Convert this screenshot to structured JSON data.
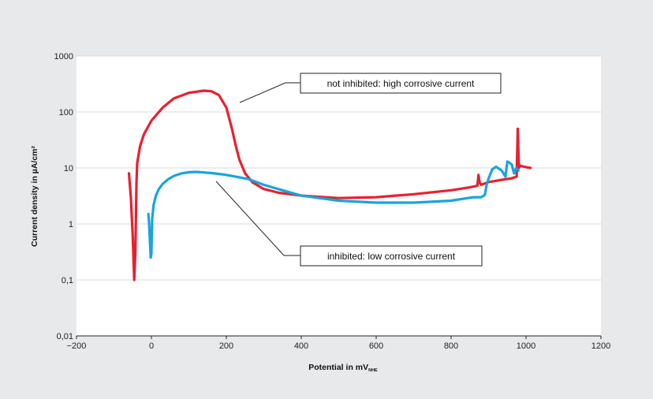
{
  "chart_data": {
    "type": "line",
    "xlabel": "Potential in mV",
    "xlabel_subscript": "NHE",
    "ylabel": "Current density in µA/cm²",
    "xlim": [
      -200,
      1200
    ],
    "ylim": [
      0.01,
      1000
    ],
    "y_scale": "log",
    "grid": "horizontal",
    "x_ticks": [
      -200,
      0,
      200,
      400,
      600,
      800,
      1000,
      1200
    ],
    "x_tick_labels": [
      "−200",
      "0",
      "200",
      "400",
      "600",
      "800",
      "1000",
      "1200"
    ],
    "y_ticks": [
      0.01,
      0.1,
      1,
      10,
      100,
      1000
    ],
    "y_tick_labels": [
      "0,01",
      "0,1",
      "1",
      "10",
      "100",
      "1000"
    ],
    "annotations": [
      {
        "text": "not inhibited: high corrosive current",
        "series": 0,
        "anchor": [
          235,
          250
        ]
      },
      {
        "text": "inhibited: low corrosive current",
        "series": 1,
        "anchor": [
          190,
          8
        ]
      }
    ],
    "series": [
      {
        "color": "#e8202f",
        "x": [
          -60,
          -55,
          -50,
          -46,
          -43,
          -40,
          -38,
          -34,
          -30,
          -20,
          0,
          30,
          60,
          100,
          140,
          160,
          180,
          200,
          215,
          225,
          235,
          250,
          270,
          300,
          340,
          400,
          500,
          600,
          700,
          800,
          850,
          870,
          873,
          876,
          880,
          900,
          920,
          940,
          960,
          975,
          978,
          981,
          985,
          995,
          1005,
          1012
        ],
        "y": [
          8,
          3,
          0.6,
          0.1,
          0.3,
          5,
          12,
          18,
          25,
          40,
          70,
          120,
          175,
          220,
          240,
          235,
          200,
          120,
          50,
          25,
          14,
          8,
          5.5,
          4.2,
          3.6,
          3.2,
          2.9,
          3.0,
          3.4,
          4.0,
          4.5,
          4.8,
          7.5,
          5.5,
          5.0,
          5.6,
          5.9,
          6.2,
          6.5,
          7,
          50,
          10,
          11,
          10.5,
          10.2,
          10
        ]
      },
      {
        "color": "#18a4dc",
        "x": [
          -8,
          -6,
          -4,
          -2,
          0,
          2,
          6,
          12,
          20,
          30,
          45,
          60,
          80,
          100,
          120,
          140,
          160,
          190,
          220,
          260,
          300,
          350,
          400,
          500,
          600,
          700,
          800,
          860,
          880,
          890,
          895,
          900,
          910,
          920,
          935,
          945,
          950,
          955,
          962,
          968,
          974,
          980
        ],
        "y": [
          1.5,
          1.0,
          0.5,
          0.25,
          0.3,
          1.2,
          2.2,
          3.2,
          4.2,
          5.2,
          6.3,
          7.2,
          8.0,
          8.4,
          8.5,
          8.3,
          8.1,
          7.7,
          7.1,
          6.3,
          5.0,
          4.0,
          3.2,
          2.6,
          2.4,
          2.4,
          2.6,
          3.0,
          3.0,
          3.3,
          5,
          6.5,
          9.5,
          10.5,
          9.0,
          7,
          13,
          12.5,
          11.5,
          8,
          10,
          9
        ]
      }
    ]
  }
}
